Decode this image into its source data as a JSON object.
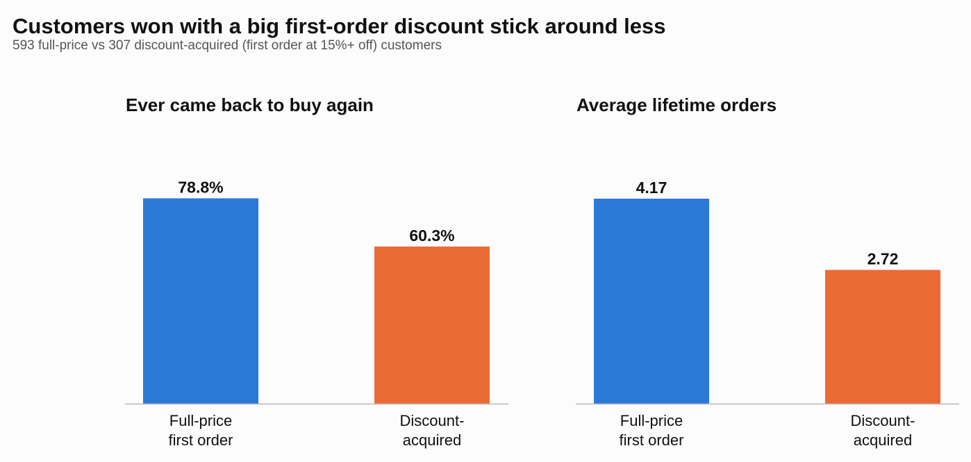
{
  "title": "Customers won with a big first-order discount stick around less",
  "subtitle": "593 full-price vs 307 discount-acquired (first order at 15%+ off) customers",
  "colors": {
    "full_price": "#2b79d6",
    "discount": "#ea6a36",
    "axis": "#b8b8b8"
  },
  "chart_data": [
    {
      "type": "bar",
      "title": "Ever came back to buy again",
      "categories": [
        "Full-price\nfirst order",
        "Discount-\nacquired"
      ],
      "values": [
        78.8,
        60.3
      ],
      "value_labels": [
        "78.8%",
        "60.3%"
      ],
      "ylim": [
        0,
        100
      ],
      "grid": false,
      "xlabel": "",
      "ylabel": ""
    },
    {
      "type": "bar",
      "title": "Average lifetime orders",
      "categories": [
        "Full-price\nfirst order",
        "Discount-\nacquired"
      ],
      "values": [
        4.17,
        2.72
      ],
      "value_labels": [
        "4.17",
        "2.72"
      ],
      "ylim": [
        0,
        5.3
      ],
      "grid": false,
      "xlabel": "",
      "ylabel": ""
    }
  ]
}
